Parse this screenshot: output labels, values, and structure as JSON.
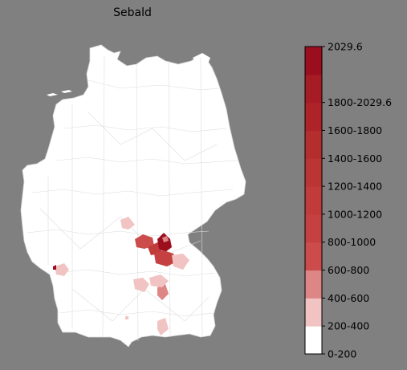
{
  "title": "Sebald",
  "legend": {
    "max_label": "2029.6",
    "bins": [
      {
        "label": "0-200",
        "color": "#ffffff"
      },
      {
        "label": "200-400",
        "color": "#f1c3c3"
      },
      {
        "label": "400-600",
        "color": "#de8585"
      },
      {
        "label": "600-800",
        "color": "#cc4c4c"
      },
      {
        "label": "800-1000",
        "color": "#c54141"
      },
      {
        "label": "1000-1200",
        "color": "#c13b3b"
      },
      {
        "label": "1200-1400",
        "color": "#bb3535"
      },
      {
        "label": "1400-1600",
        "color": "#b52e2e"
      },
      {
        "label": "1600-1800",
        "color": "#ad2328"
      },
      {
        "label": "1800-2029.6",
        "color": "#a51c24"
      },
      {
        "label": "",
        "color": "#9a0e1e"
      }
    ]
  },
  "colors": {
    "background": "#808080",
    "land": "#ffffff",
    "border": "#d9d9d9"
  }
}
